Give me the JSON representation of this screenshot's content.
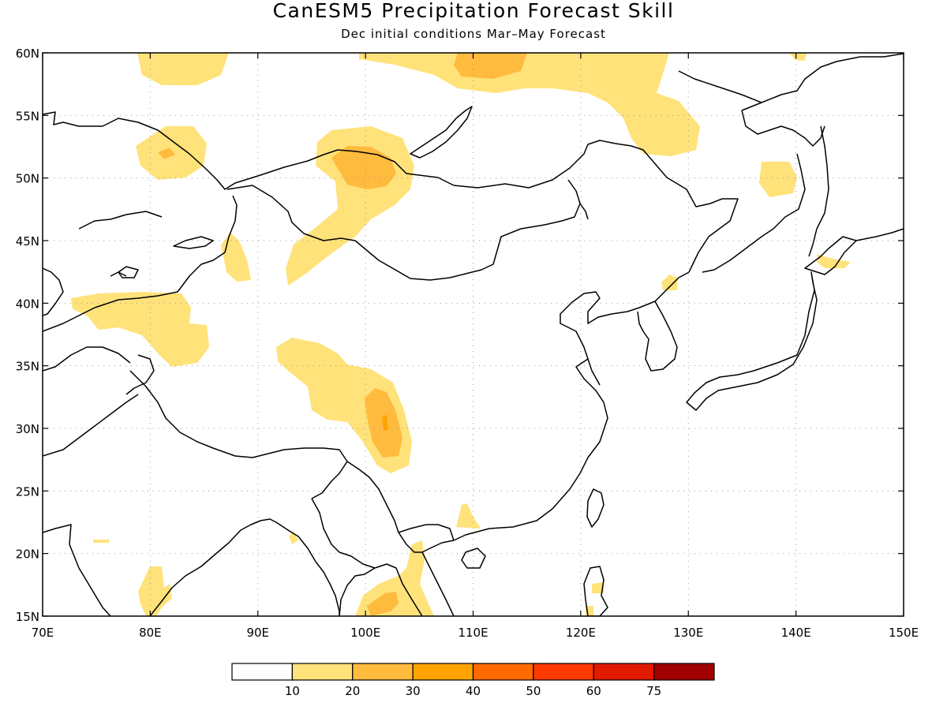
{
  "header": {
    "title": "CanESM5 Precipitation Forecast Skill",
    "subtitle": "Dec initial conditions  Mar–May Forecast"
  },
  "map": {
    "lon_range": [
      70,
      150
    ],
    "lat_range": [
      15,
      60
    ],
    "lon_ticks": [
      {
        "value": 70,
        "label": "70E"
      },
      {
        "value": 80,
        "label": "80E"
      },
      {
        "value": 90,
        "label": "90E"
      },
      {
        "value": 100,
        "label": "100E"
      },
      {
        "value": 110,
        "label": "110E"
      },
      {
        "value": 120,
        "label": "120E"
      },
      {
        "value": 130,
        "label": "130E"
      },
      {
        "value": 140,
        "label": "140E"
      },
      {
        "value": 150,
        "label": "150E"
      }
    ],
    "lat_ticks": [
      {
        "value": 15,
        "label": "15N"
      },
      {
        "value": 20,
        "label": "20N"
      },
      {
        "value": 25,
        "label": "25N"
      },
      {
        "value": 30,
        "label": "30N"
      },
      {
        "value": 35,
        "label": "35N"
      },
      {
        "value": 40,
        "label": "40N"
      },
      {
        "value": 45,
        "label": "45N"
      },
      {
        "value": 50,
        "label": "50N"
      },
      {
        "value": 55,
        "label": "55N"
      },
      {
        "value": 60,
        "label": "60N"
      }
    ],
    "grid": true,
    "colors": {
      "frame": "#000000",
      "coast": "#000000",
      "grid": "#9a9a9a",
      "level10": "#ffe27a",
      "level20": "#ffbb3e"
    }
  },
  "legend": {
    "bins": [
      {
        "color": "#ffffff"
      },
      {
        "color": "#ffe27a"
      },
      {
        "color": "#ffbb3e"
      },
      {
        "color": "#ffa400"
      },
      {
        "color": "#ff6a00"
      },
      {
        "color": "#ff3a00"
      },
      {
        "color": "#e21a00"
      },
      {
        "color": "#a00000"
      }
    ],
    "labels": [
      "10",
      "20",
      "30",
      "40",
      "50",
      "60",
      "75"
    ]
  }
}
